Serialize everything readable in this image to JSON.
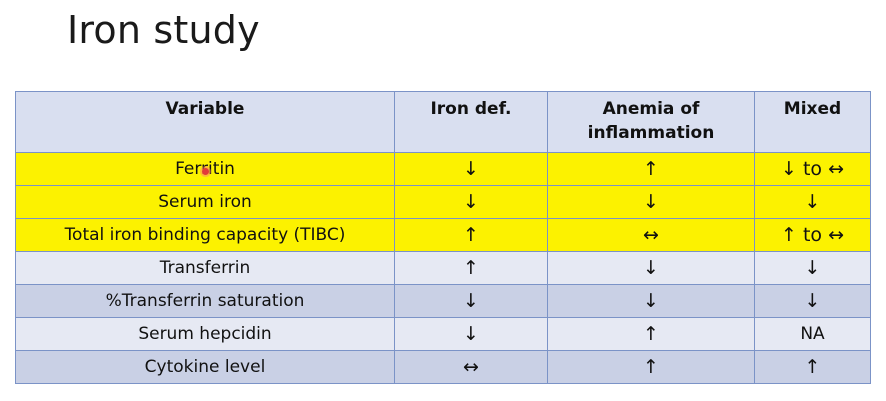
{
  "title": "Iron study",
  "table": {
    "headers": [
      "Variable",
      "Iron def.",
      "Anemia of inflammation",
      "Mixed"
    ],
    "rows": [
      {
        "variable": "Ferritin",
        "iron_def": "↓",
        "anemia": "↑",
        "mixed": "↓ to ↔",
        "highlight": "yellow"
      },
      {
        "variable": "Serum iron",
        "iron_def": "↓",
        "anemia": "↓",
        "mixed": "↓",
        "highlight": "yellow"
      },
      {
        "variable": "Total iron binding capacity (TIBC)",
        "iron_def": "↑",
        "anemia": "↔",
        "mixed": "↑ to ↔",
        "highlight": "yellow"
      },
      {
        "variable": "Transferrin",
        "iron_def": "↑",
        "anemia": "↓",
        "mixed": "↓",
        "highlight": "light"
      },
      {
        "variable": "%Transferrin saturation",
        "iron_def": "↓",
        "anemia": "↓",
        "mixed": "↓",
        "highlight": "dark"
      },
      {
        "variable": "Serum hepcidin",
        "iron_def": "↓",
        "anemia": "↑",
        "mixed": "NA",
        "highlight": "light"
      },
      {
        "variable": "Cytokine level",
        "iron_def": "↔",
        "anemia": "↑",
        "mixed": "↑",
        "highlight": "dark"
      }
    ]
  },
  "colors": {
    "highlight_yellow": "#fcf200",
    "row_light": "#e6e9f3",
    "row_dark": "#c9d0e5",
    "header_bg": "#d9dff0",
    "border": "#7b93c7"
  }
}
